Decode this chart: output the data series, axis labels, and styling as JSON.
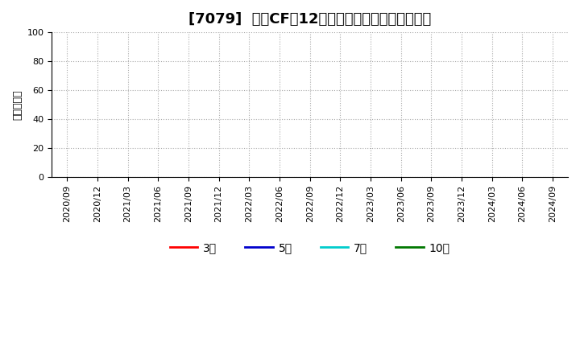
{
  "title": "[7079]  投資CFの12か月移動合計の平均値の推移",
  "ylabel": "（百万円）",
  "ylim": [
    0,
    100
  ],
  "yticks": [
    0,
    20,
    40,
    60,
    80,
    100
  ],
  "xstart": "2020/09",
  "xend": "2024/09",
  "xtick_labels": [
    "2020/09",
    "2020/12",
    "2021/03",
    "2021/06",
    "2021/09",
    "2021/12",
    "2022/03",
    "2022/06",
    "2022/09",
    "2022/12",
    "2023/03",
    "2023/06",
    "2023/09",
    "2023/12",
    "2024/03",
    "2024/06",
    "2024/09"
  ],
  "background_color": "#ffffff",
  "plot_bg_color": "#ffffff",
  "grid_color": "#aaaaaa",
  "legend_entries": [
    {
      "label": "3年",
      "color": "#ff0000"
    },
    {
      "label": "5年",
      "color": "#0000cc"
    },
    {
      "label": "7年",
      "color": "#00cccc"
    },
    {
      "label": "10年",
      "color": "#007700"
    }
  ],
  "title_fontsize": 13,
  "axis_label_fontsize": 9,
  "tick_fontsize": 8,
  "legend_fontsize": 10
}
